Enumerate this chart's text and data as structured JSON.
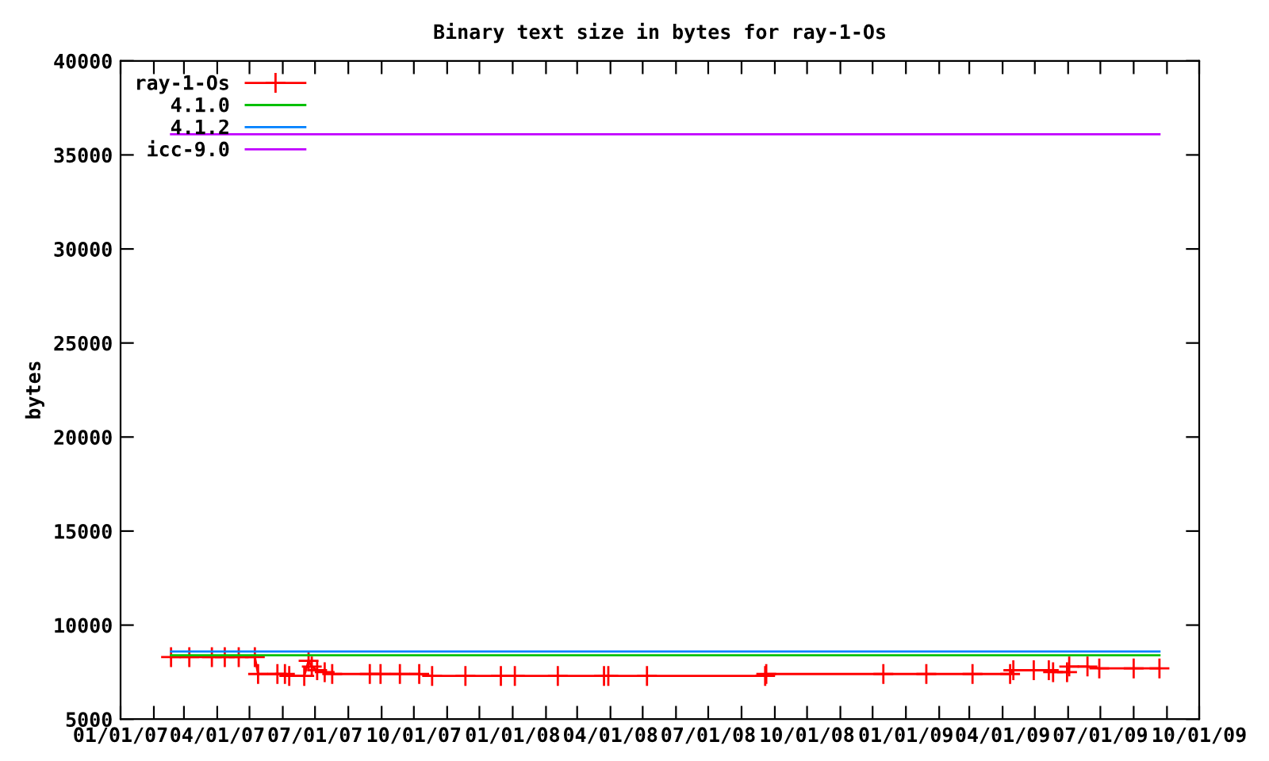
{
  "chart_data": {
    "type": "line",
    "title": "Binary text size in bytes for ray-1-Os",
    "ylabel": "bytes",
    "series": [
      {
        "name": "ray-1-Os",
        "color": "#ff0000",
        "marker": "cross",
        "x": [
          "2007-02-17",
          "2007-03-06",
          "2007-03-27",
          "2007-04-08",
          "2007-04-21",
          "2007-05-06",
          "2007-05-09",
          "2007-05-27",
          "2007-06-03",
          "2007-06-07",
          "2007-06-21",
          "2007-06-25",
          "2007-06-28",
          "2007-07-03",
          "2007-07-10",
          "2007-07-17",
          "2007-08-21",
          "2007-08-31",
          "2007-09-18",
          "2007-10-06",
          "2007-10-18",
          "2007-11-18",
          "2007-12-21",
          "2008-01-03",
          "2008-02-12",
          "2008-03-26",
          "2008-03-30",
          "2008-05-05",
          "2008-08-23",
          "2008-08-24",
          "2008-12-11",
          "2009-01-20",
          "2009-03-04",
          "2009-04-08",
          "2009-04-11",
          "2009-04-30",
          "2009-05-14",
          "2009-05-18",
          "2009-05-31",
          "2009-06-02",
          "2009-06-19",
          "2009-06-30",
          "2009-08-01",
          "2009-08-25"
        ],
        "values": [
          8300,
          8300,
          8300,
          8300,
          8300,
          8300,
          7400,
          7400,
          7400,
          7300,
          7300,
          8100,
          7800,
          7600,
          7500,
          7400,
          7400,
          7400,
          7400,
          7400,
          7300,
          7300,
          7300,
          7300,
          7300,
          7300,
          7300,
          7300,
          7300,
          7400,
          7400,
          7400,
          7400,
          7400,
          7600,
          7600,
          7600,
          7500,
          7500,
          7800,
          7800,
          7700,
          7700,
          7700
        ]
      },
      {
        "name": "4.1.0",
        "color": "#00c000",
        "x": [
          "2007-02-17",
          "2009-08-25"
        ],
        "values": [
          8400,
          8400
        ]
      },
      {
        "name": "4.1.2",
        "color": "#0080ff",
        "x": [
          "2007-02-17",
          "2009-08-25"
        ],
        "values": [
          8600,
          8600
        ]
      },
      {
        "name": "icc-9.0",
        "color": "#c000ff",
        "x": [
          "2007-02-17",
          "2009-08-25"
        ],
        "values": [
          36100,
          36100
        ]
      }
    ],
    "xlim": [
      "2007-01-01",
      "2009-10-01"
    ],
    "xticks": [
      {
        "value": "2007-01-01",
        "label": "01/01/07"
      },
      {
        "value": "2007-02-01",
        "label": null
      },
      {
        "value": "2007-03-01",
        "label": null
      },
      {
        "value": "2007-04-01",
        "label": "04/01/07"
      },
      {
        "value": "2007-05-01",
        "label": null
      },
      {
        "value": "2007-06-01",
        "label": null
      },
      {
        "value": "2007-07-01",
        "label": "07/01/07"
      },
      {
        "value": "2007-08-01",
        "label": null
      },
      {
        "value": "2007-09-01",
        "label": null
      },
      {
        "value": "2007-10-01",
        "label": "10/01/07"
      },
      {
        "value": "2007-11-01",
        "label": null
      },
      {
        "value": "2007-12-01",
        "label": null
      },
      {
        "value": "2008-01-01",
        "label": "01/01/08"
      },
      {
        "value": "2008-02-01",
        "label": null
      },
      {
        "value": "2008-03-01",
        "label": null
      },
      {
        "value": "2008-04-01",
        "label": "04/01/08"
      },
      {
        "value": "2008-05-01",
        "label": null
      },
      {
        "value": "2008-06-01",
        "label": null
      },
      {
        "value": "2008-07-01",
        "label": "07/01/08"
      },
      {
        "value": "2008-08-01",
        "label": null
      },
      {
        "value": "2008-09-01",
        "label": null
      },
      {
        "value": "2008-10-01",
        "label": "10/01/08"
      },
      {
        "value": "2008-11-01",
        "label": null
      },
      {
        "value": "2008-12-01",
        "label": null
      },
      {
        "value": "2009-01-01",
        "label": "01/01/09"
      },
      {
        "value": "2009-02-01",
        "label": null
      },
      {
        "value": "2009-03-01",
        "label": null
      },
      {
        "value": "2009-04-01",
        "label": "04/01/09"
      },
      {
        "value": "2009-05-01",
        "label": null
      },
      {
        "value": "2009-06-01",
        "label": null
      },
      {
        "value": "2009-07-01",
        "label": "07/01/09"
      },
      {
        "value": "2009-08-01",
        "label": null
      },
      {
        "value": "2009-09-01",
        "label": null
      },
      {
        "value": "2009-10-01",
        "label": "10/01/09"
      }
    ],
    "ylim": [
      5000,
      40000
    ],
    "yticks": [
      5000,
      10000,
      15000,
      20000,
      25000,
      30000,
      35000,
      40000
    ],
    "grid": false,
    "legend": "top left"
  }
}
